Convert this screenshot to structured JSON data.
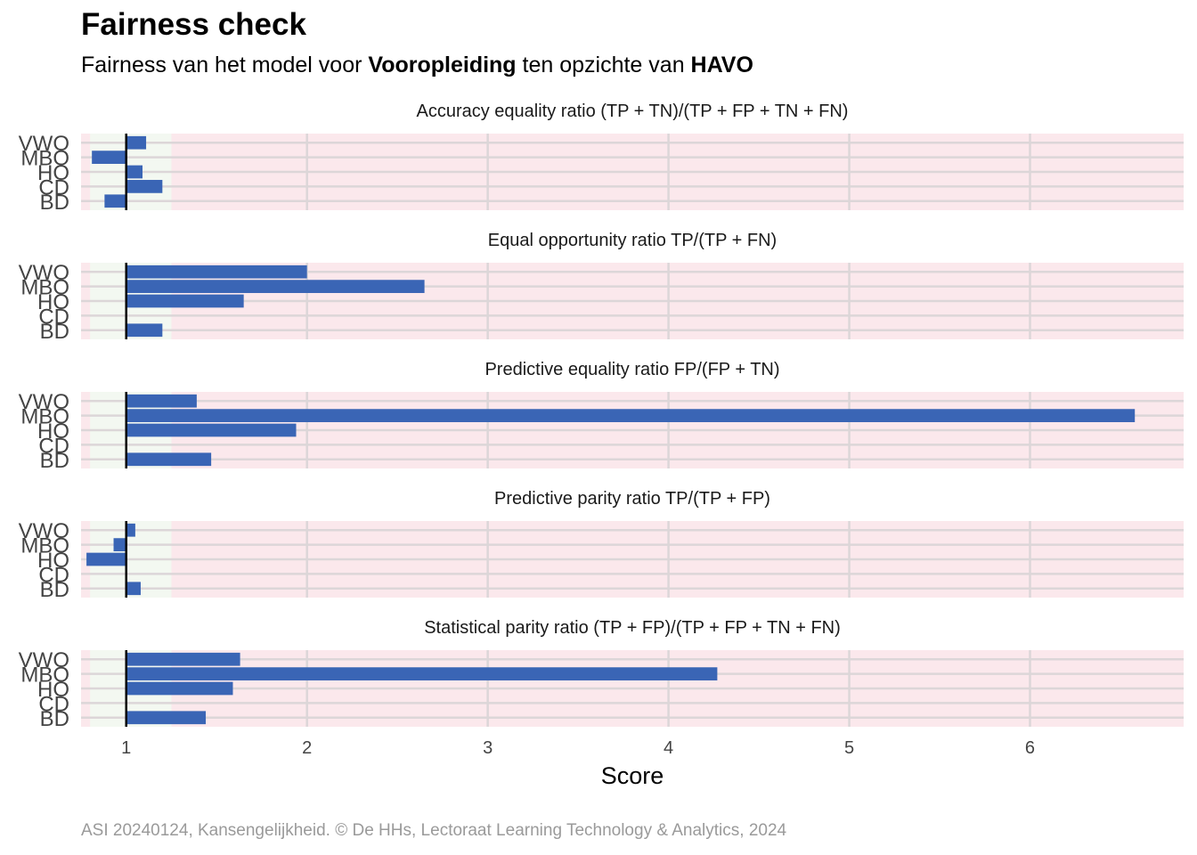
{
  "title": "Fairness check",
  "subtitle": {
    "prefix": "Fairness van het model voor ",
    "variable": "Vooropleiding",
    "middle": " ten opzichte van ",
    "reference": "HAVO"
  },
  "caption": "ASI 20240124, Kansengelijkheid. © De HHs, Lectoraat Learning Technology & Analytics, 2024",
  "colors": {
    "bar": "#3A65B5",
    "fair_band": "#F3F8F1",
    "unfair_band": "#FBE8EC",
    "grid": "#DCD6D8",
    "reference_line": "#000000",
    "axis_text": "#444444"
  },
  "chart_data": {
    "type": "bar",
    "orientation": "horizontal",
    "xlabel": "Score",
    "ylabel": "",
    "xlim": [
      0.75,
      6.85
    ],
    "xticks": [
      1,
      2,
      3,
      4,
      5,
      6
    ],
    "reference_value": 1,
    "fair_range": [
      0.8,
      1.25
    ],
    "grid": true,
    "categories": [
      "VWO",
      "MBO",
      "HO",
      "CD",
      "BD"
    ],
    "panels": [
      {
        "title": "Accuracy equality ratio    (TP + TN)/(TP + FP + TN + FN)",
        "values": [
          1.11,
          0.81,
          1.09,
          1.2,
          0.88
        ]
      },
      {
        "title": "Equal opportunity ratio     TP/(TP + FN)",
        "values": [
          2.0,
          2.65,
          1.65,
          null,
          1.2
        ]
      },
      {
        "title": "Predictive equality ratio   FP/(FP + TN)",
        "values": [
          1.39,
          6.58,
          1.94,
          null,
          1.47
        ]
      },
      {
        "title": "Predictive parity ratio     TP/(TP + FP)",
        "values": [
          1.05,
          0.93,
          0.78,
          null,
          1.08
        ]
      },
      {
        "title": "Statistical parity ratio   (TP + FP)/(TP + FP + TN + FN)",
        "values": [
          1.63,
          4.27,
          1.59,
          null,
          1.44
        ]
      }
    ]
  }
}
